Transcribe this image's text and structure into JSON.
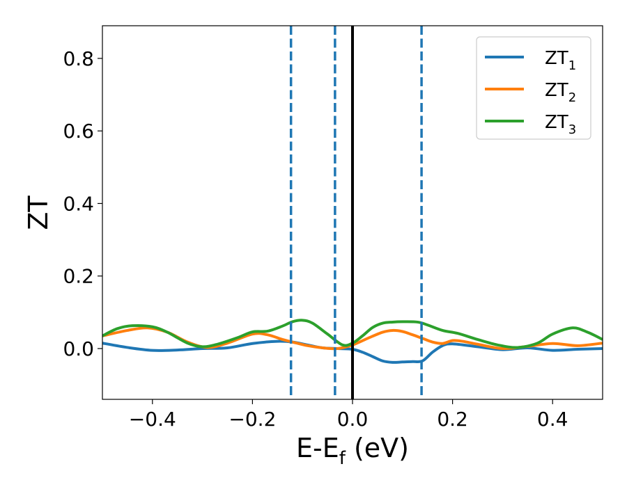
{
  "chart_data": {
    "type": "line",
    "xlabel": "E-E",
    "xlabel_sub": "f",
    "xlabel_unit": " (eV)",
    "ylabel": "ZT",
    "xlim": [
      -0.5,
      0.5
    ],
    "ylim": [
      -0.14,
      0.89
    ],
    "xticks": [
      -0.4,
      -0.2,
      0.0,
      0.2,
      0.4
    ],
    "xtick_labels": [
      "−0.4",
      "−0.2",
      "0.0",
      "0.2",
      "0.4"
    ],
    "yticks": [
      0.0,
      0.2,
      0.4,
      0.6,
      0.8
    ],
    "ytick_labels": [
      "0.0",
      "0.2",
      "0.4",
      "0.6",
      "0.8"
    ],
    "grid": false,
    "legend_position": "top-right",
    "vertical_lines": [
      {
        "x": -0.123,
        "style": "dashed",
        "color": "#1f77b4"
      },
      {
        "x": -0.035,
        "style": "dashed",
        "color": "#1f77b4"
      },
      {
        "x": 0.0,
        "style": "solid",
        "color": "#000000"
      },
      {
        "x": 0.138,
        "style": "dashed",
        "color": "#1f77b4"
      }
    ],
    "series": [
      {
        "name": "ZT",
        "name_sub": "1",
        "color": "#1f77b4",
        "x": [
          -0.5,
          -0.45,
          -0.4,
          -0.35,
          -0.3,
          -0.25,
          -0.2,
          -0.15,
          -0.12,
          -0.09,
          -0.06,
          -0.03,
          0.0,
          0.02,
          0.04,
          0.06,
          0.08,
          0.1,
          0.12,
          0.14,
          0.16,
          0.18,
          0.2,
          0.25,
          0.3,
          0.35,
          0.4,
          0.45,
          0.5
        ],
        "y": [
          0.015,
          0.003,
          -0.005,
          -0.004,
          0.0,
          0.002,
          0.014,
          0.02,
          0.018,
          0.01,
          0.002,
          0.0,
          -0.002,
          -0.01,
          -0.022,
          -0.034,
          -0.038,
          -0.037,
          -0.036,
          -0.034,
          -0.01,
          0.008,
          0.013,
          0.005,
          -0.003,
          0.002,
          -0.005,
          -0.002,
          0.0
        ]
      },
      {
        "name": "ZT",
        "name_sub": "2",
        "color": "#ff7f0e",
        "x": [
          -0.5,
          -0.45,
          -0.41,
          -0.37,
          -0.33,
          -0.29,
          -0.25,
          -0.2,
          -0.17,
          -0.14,
          -0.12,
          -0.09,
          -0.06,
          -0.03,
          0.0,
          0.03,
          0.06,
          0.08,
          0.1,
          0.12,
          0.14,
          0.16,
          0.18,
          0.2,
          0.22,
          0.25,
          0.3,
          0.35,
          0.4,
          0.45,
          0.5
        ],
        "y": [
          0.035,
          0.05,
          0.057,
          0.045,
          0.018,
          0.003,
          0.015,
          0.04,
          0.038,
          0.025,
          0.018,
          0.008,
          0.002,
          0.0,
          0.01,
          0.028,
          0.045,
          0.05,
          0.047,
          0.038,
          0.028,
          0.018,
          0.014,
          0.022,
          0.02,
          0.012,
          0.0,
          0.006,
          0.014,
          0.008,
          0.015
        ]
      },
      {
        "name": "ZT",
        "name_sub": "3",
        "color": "#2ca02c",
        "x": [
          -0.5,
          -0.47,
          -0.44,
          -0.4,
          -0.37,
          -0.33,
          -0.3,
          -0.27,
          -0.23,
          -0.2,
          -0.17,
          -0.14,
          -0.12,
          -0.1,
          -0.08,
          -0.05,
          -0.02,
          0.0,
          0.02,
          0.04,
          0.06,
          0.08,
          0.1,
          0.13,
          0.15,
          0.18,
          0.21,
          0.25,
          0.29,
          0.33,
          0.37,
          0.4,
          0.44,
          0.47,
          0.5
        ],
        "y": [
          0.035,
          0.055,
          0.063,
          0.06,
          0.045,
          0.015,
          0.005,
          0.012,
          0.03,
          0.046,
          0.048,
          0.062,
          0.074,
          0.078,
          0.07,
          0.04,
          0.01,
          0.015,
          0.035,
          0.058,
          0.07,
          0.073,
          0.074,
          0.073,
          0.065,
          0.05,
          0.042,
          0.025,
          0.01,
          0.003,
          0.015,
          0.04,
          0.057,
          0.045,
          0.025
        ]
      }
    ]
  }
}
